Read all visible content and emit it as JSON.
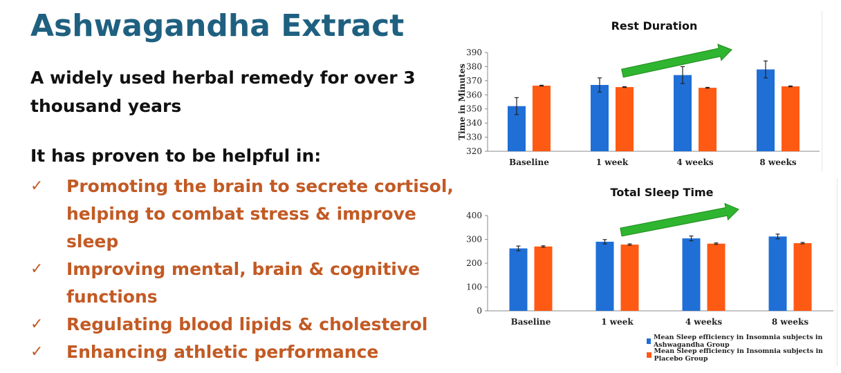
{
  "page": {
    "title": "Ashwagandha Extract",
    "subtitle": "A widely used herbal remedy for over 3 thousand years",
    "helpful_heading": "It has proven to be helpful in:",
    "check_symbol": "✓",
    "benefits": [
      "Promoting the brain to secrete cortisol, helping to combat stress & improve sleep",
      "Improving mental, brain & cognitive functions",
      "Regulating blood lipids & cholesterol",
      "Enhancing athletic performance"
    ],
    "colors": {
      "title": "#1f6080",
      "accent": "#c25a24",
      "ashwagandha": "#1f6fd6",
      "placebo": "#ff5a14",
      "arrow": "#2fb52f"
    }
  },
  "chart_data": [
    {
      "type": "bar",
      "title": "Rest Duration",
      "ylabel": "Time in Minutes",
      "xlabel": "",
      "categories": [
        "Baseline",
        "1 week",
        "4 weeks",
        "8 weeks"
      ],
      "ylim": [
        320,
        390
      ],
      "yticks": [
        320,
        330,
        340,
        350,
        360,
        370,
        380,
        390
      ],
      "series": [
        {
          "values": [
            352,
            367,
            374,
            378
          ],
          "error": [
            6,
            5,
            6,
            6
          ],
          "color": "#1f6fd6"
        },
        {
          "values": [
            366.5,
            365.5,
            365,
            366
          ],
          "error": [
            0.3,
            0.3,
            0.3,
            0.3
          ],
          "color": "#ff5a14"
        }
      ],
      "annotation": "green-trend-arrow",
      "grid": false
    },
    {
      "type": "bar",
      "title": "Total Sleep Time",
      "ylabel": "",
      "xlabel": "",
      "categories": [
        "Baseline",
        "1 week",
        "4 weeks",
        "8 weeks"
      ],
      "ylim": [
        0,
        400
      ],
      "yticks": [
        0,
        100,
        200,
        300,
        400
      ],
      "series": [
        {
          "name": "Mean Sleep efficiency in Insomnia subjects in Ashwagandha Group",
          "values": [
            262,
            290,
            304,
            312
          ],
          "error": [
            10,
            9,
            10,
            10
          ],
          "color": "#1f6fd6"
        },
        {
          "name": "Mean Sleep efficiency in Insomnia subjects in Placebo Group",
          "values": [
            270,
            278,
            282,
            284
          ],
          "error": [
            3,
            3,
            3,
            3
          ],
          "color": "#ff5a14"
        }
      ],
      "annotation": "green-trend-arrow",
      "legend": "bottom-right",
      "grid": false
    }
  ]
}
